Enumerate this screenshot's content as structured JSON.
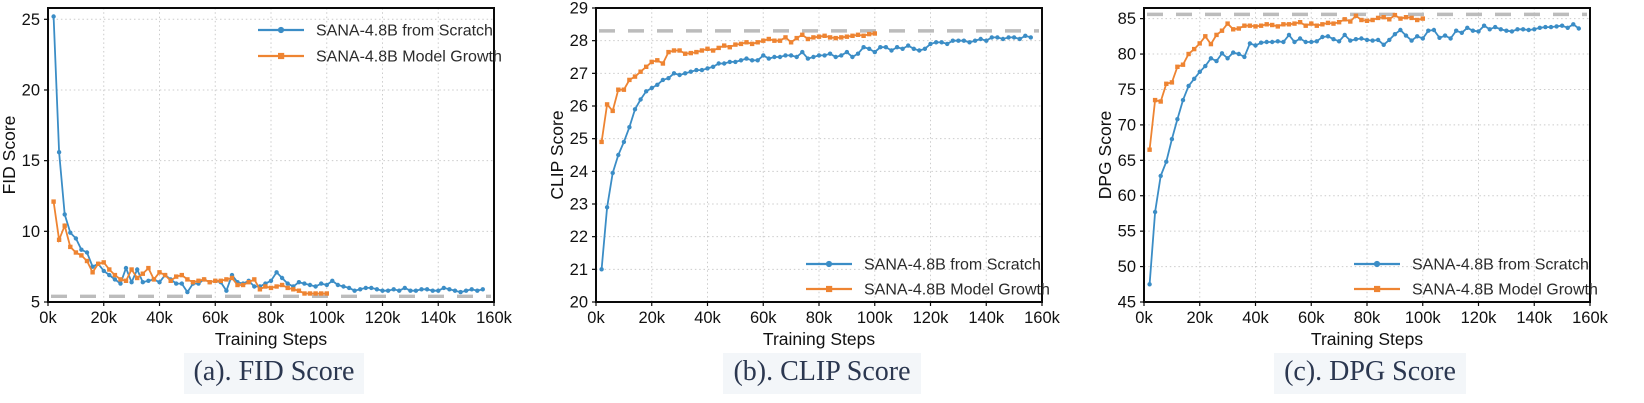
{
  "colors": {
    "scratch_blue": "#3b8dc6",
    "growth_orange": "#ee8432",
    "baseline_gray": "#b5b5b5",
    "grid_gray": "#cccccc",
    "axis_black": "#0a0a0a",
    "caption_navy": "#2b3750"
  },
  "legend": {
    "scratch_label": "SANA-4.8B from Scratch",
    "growth_label": "SANA-4.8B Model Growth"
  },
  "chart_data": [
    {
      "type": "line",
      "title": "(a). FID Score",
      "xlabel": "Training Steps",
      "ylabel": "FID Score",
      "xlim": [
        0,
        160
      ],
      "ylim": [
        5,
        25.8
      ],
      "xticks": [
        0,
        20,
        40,
        60,
        80,
        100,
        120,
        140,
        160
      ],
      "xtick_labels": [
        "0k",
        "20k",
        "40k",
        "60k",
        "80k",
        "100k",
        "120k",
        "140k",
        "160k"
      ],
      "yticks": [
        5,
        10,
        15,
        20,
        25
      ],
      "grid": true,
      "legend_position": "top-right",
      "baseline": {
        "value": 5.4,
        "style": "dashed",
        "color": "#b5b5b5"
      },
      "series": [
        {
          "name": "SANA-4.8B from Scratch",
          "color": "#3b8dc6",
          "marker": "circle",
          "x_start": 2,
          "x_step": 2,
          "values": [
            25.2,
            15.6,
            11.2,
            9.9,
            9.5,
            8.7,
            8.5,
            7.5,
            7.7,
            7.2,
            6.9,
            6.6,
            6.3,
            7.4,
            6.4,
            7.3,
            6.4,
            6.5,
            6.6,
            6.4,
            6.9,
            6.6,
            6.3,
            6.3,
            5.7,
            6.3,
            6.3,
            6.6,
            6.4,
            6.5,
            6.4,
            5.8,
            6.9,
            6.4,
            6.3,
            6.5,
            6.1,
            6.1,
            6.3,
            6.5,
            7.1,
            6.7,
            6.3,
            6.1,
            6.4,
            6.3,
            6.2,
            6.1,
            6.3,
            6.2,
            6.5,
            6.2,
            6.1,
            6.0,
            5.8,
            5.9,
            6.0,
            6.0,
            5.9,
            5.8,
            5.8,
            5.9,
            5.8,
            6.0,
            5.8,
            5.8,
            5.9,
            5.9,
            5.8,
            5.8,
            6.0,
            5.9,
            5.8,
            5.7,
            5.8,
            5.9,
            5.8,
            5.9
          ]
        },
        {
          "name": "SANA-4.8B Model Growth",
          "color": "#ee8432",
          "marker": "square",
          "x_start": 2,
          "x_step": 2,
          "values": [
            12.1,
            9.4,
            10.4,
            8.9,
            8.5,
            8.3,
            7.9,
            7.1,
            7.7,
            7.8,
            7.3,
            6.9,
            6.6,
            6.5,
            7.3,
            6.7,
            7.0,
            7.4,
            6.6,
            7.1,
            6.9,
            6.5,
            6.8,
            6.9,
            6.6,
            6.4,
            6.5,
            6.6,
            6.4,
            6.5,
            6.5,
            6.6,
            6.7,
            6.2,
            6.2,
            6.4,
            6.6,
            5.9,
            6.1,
            6.0,
            6.1,
            6.2,
            6.0,
            5.9,
            5.8,
            5.6,
            5.6,
            5.6,
            5.6,
            5.6
          ]
        }
      ]
    },
    {
      "type": "line",
      "title": "(b). CLIP Score",
      "xlabel": "Training Steps",
      "ylabel": "CLIP Score",
      "xlim": [
        0,
        160
      ],
      "ylim": [
        20,
        29
      ],
      "xticks": [
        0,
        20,
        40,
        60,
        80,
        100,
        120,
        140,
        160
      ],
      "xtick_labels": [
        "0k",
        "20k",
        "40k",
        "60k",
        "80k",
        "100k",
        "120k",
        "140k",
        "160k"
      ],
      "yticks": [
        20,
        21,
        22,
        23,
        24,
        25,
        26,
        27,
        28,
        29
      ],
      "grid": true,
      "legend_position": "bottom-right",
      "baseline": {
        "value": 28.3,
        "style": "dashed",
        "color": "#b5b5b5"
      },
      "series": [
        {
          "name": "SANA-4.8B from Scratch",
          "color": "#3b8dc6",
          "marker": "circle",
          "x_start": 2,
          "x_step": 2,
          "values": [
            21.0,
            22.9,
            23.95,
            24.5,
            24.9,
            25.35,
            25.9,
            26.2,
            26.45,
            26.55,
            26.65,
            26.8,
            26.85,
            27.0,
            26.95,
            27.0,
            27.05,
            27.1,
            27.1,
            27.15,
            27.2,
            27.3,
            27.3,
            27.35,
            27.35,
            27.4,
            27.45,
            27.4,
            27.4,
            27.55,
            27.45,
            27.5,
            27.5,
            27.55,
            27.55,
            27.5,
            27.65,
            27.45,
            27.5,
            27.55,
            27.55,
            27.6,
            27.5,
            27.55,
            27.65,
            27.5,
            27.6,
            27.8,
            27.75,
            27.65,
            27.8,
            27.8,
            27.7,
            27.8,
            27.75,
            27.85,
            27.75,
            27.7,
            27.75,
            27.9,
            27.95,
            27.95,
            27.9,
            28.0,
            28.0,
            28.0,
            27.95,
            28.0,
            28.05,
            28.0,
            28.1,
            28.1,
            28.05,
            28.1,
            28.1,
            28.05,
            28.15,
            28.1
          ]
        },
        {
          "name": "SANA-4.8B Model Growth",
          "color": "#ee8432",
          "marker": "square",
          "x_start": 2,
          "x_step": 2,
          "values": [
            24.9,
            26.05,
            25.85,
            26.5,
            26.5,
            26.8,
            26.9,
            27.05,
            27.2,
            27.35,
            27.4,
            27.3,
            27.65,
            27.7,
            27.7,
            27.6,
            27.62,
            27.65,
            27.7,
            27.75,
            27.7,
            27.78,
            27.85,
            27.8,
            27.88,
            27.9,
            27.95,
            27.9,
            27.95,
            28.0,
            28.05,
            28.0,
            28.0,
            28.1,
            27.95,
            28.08,
            28.18,
            28.05,
            28.1,
            28.12,
            28.15,
            28.1,
            28.08,
            28.1,
            28.12,
            28.15,
            28.18,
            28.15,
            28.2,
            28.22
          ]
        }
      ]
    },
    {
      "type": "line",
      "title": "(c). DPG Score",
      "xlabel": "Training Steps",
      "ylabel": "DPG Score",
      "xlim": [
        0,
        160
      ],
      "ylim": [
        45,
        86.5
      ],
      "xticks": [
        0,
        20,
        40,
        60,
        80,
        100,
        120,
        140,
        160
      ],
      "xtick_labels": [
        "0k",
        "20k",
        "40k",
        "60k",
        "80k",
        "100k",
        "120k",
        "140k",
        "160k"
      ],
      "yticks": [
        45,
        50,
        55,
        60,
        65,
        70,
        75,
        80,
        85
      ],
      "grid": true,
      "legend_position": "bottom-right",
      "baseline": {
        "value": 85.6,
        "style": "dashed",
        "color": "#b5b5b5"
      },
      "series": [
        {
          "name": "SANA-4.8B from Scratch",
          "color": "#3b8dc6",
          "marker": "circle",
          "x_start": 2,
          "x_step": 2,
          "values": [
            47.5,
            57.7,
            62.8,
            64.8,
            68.0,
            70.8,
            73.5,
            75.5,
            76.5,
            77.5,
            78.3,
            79.4,
            79.0,
            80.1,
            79.4,
            80.2,
            80.0,
            79.6,
            81.5,
            81.2,
            81.6,
            81.7,
            81.7,
            81.8,
            81.7,
            82.7,
            81.7,
            82.2,
            81.7,
            81.7,
            81.8,
            82.4,
            82.5,
            82.1,
            81.8,
            82.7,
            81.9,
            82.1,
            82.2,
            82.0,
            81.9,
            82.0,
            81.3,
            82.0,
            82.8,
            83.4,
            82.6,
            81.9,
            82.5,
            82.2,
            83.3,
            83.4,
            82.3,
            82.6,
            82.2,
            83.3,
            83.0,
            83.7,
            83.3,
            83.2,
            84.0,
            83.5,
            83.8,
            83.5,
            83.3,
            83.2,
            83.5,
            83.5,
            83.4,
            83.5,
            83.7,
            83.8,
            83.8,
            83.9,
            84.0,
            83.7,
            84.2,
            83.6
          ]
        },
        {
          "name": "SANA-4.8B Model Growth",
          "color": "#ee8432",
          "marker": "square",
          "x_start": 2,
          "x_step": 2,
          "values": [
            66.5,
            73.5,
            73.3,
            75.8,
            76.0,
            78.2,
            78.5,
            80.0,
            80.7,
            81.5,
            82.5,
            81.4,
            82.7,
            83.3,
            84.3,
            83.5,
            83.6,
            84.0,
            84.0,
            83.9,
            84.0,
            84.2,
            84.1,
            83.9,
            84.2,
            84.2,
            84.3,
            84.5,
            84.0,
            84.3,
            84.0,
            84.2,
            84.4,
            84.3,
            84.5,
            84.9,
            84.6,
            85.4,
            84.8,
            84.7,
            84.8,
            85.1,
            85.2,
            84.9,
            85.5,
            85.0,
            85.2,
            85.1,
            84.8,
            85.0
          ]
        }
      ]
    }
  ]
}
